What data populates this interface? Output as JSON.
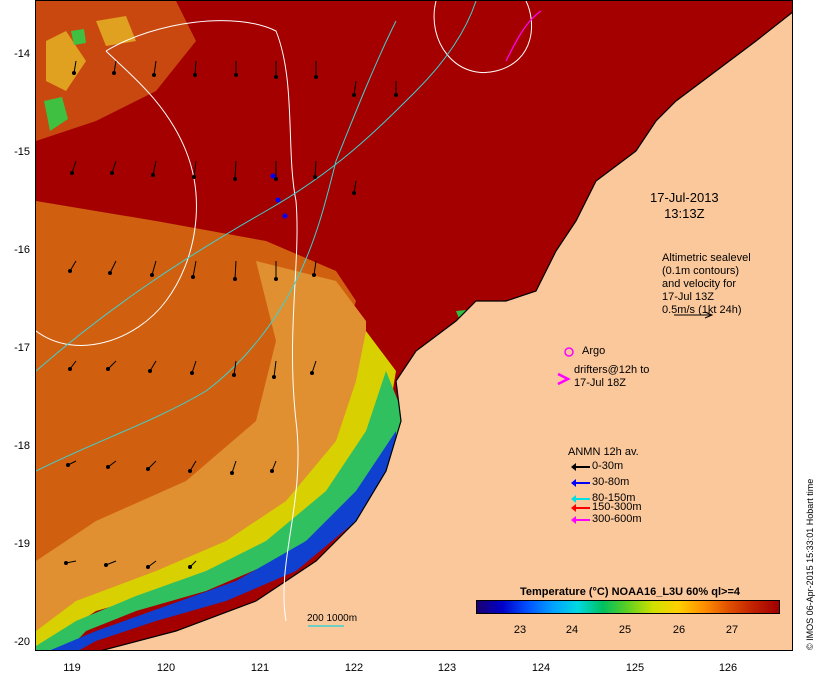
{
  "map": {
    "lat_ticks": [
      "-14",
      "-15",
      "-16",
      "-17",
      "-18",
      "-19",
      "-20"
    ],
    "lon_ticks": [
      "119",
      "120",
      "121",
      "122",
      "123",
      "124",
      "125",
      "126"
    ],
    "colors": {
      "warm": "#a40000",
      "land": "#fbc89c",
      "ocean_mid": "#d06010",
      "cool": "#e09030"
    }
  },
  "timestamp": {
    "line1": "17-Jul-2013",
    "line2": "13:13Z"
  },
  "sealevel_note": {
    "line1": "Altimetric sealevel",
    "line2": "(0.1m contours)",
    "line3": "and velocity for",
    "line4": "17-Jul 13Z",
    "line5": "0.5m/s (1kt 24h)"
  },
  "argo": {
    "label": "Argo",
    "color": "#ff00ff"
  },
  "drifters": {
    "line1": "drifters@12h to",
    "line2": "17-Jul 18Z",
    "color": "#ff00ff"
  },
  "anmn": {
    "title": "ANMN 12h av.",
    "items": [
      {
        "label": "0-30m",
        "color": "#000000"
      },
      {
        "label": "30-80m",
        "color": "#0000ff"
      },
      {
        "label": "80-150m",
        "color": "#00e0e0"
      },
      {
        "label": "150-300m",
        "color": "#ff0000"
      },
      {
        "label": "300-600m",
        "color": "#ff00ff"
      }
    ]
  },
  "depth_contours": {
    "label": "200  1000m",
    "color": "#40d0d0"
  },
  "colorbar": {
    "title": "Temperature (°C) NOAA16_L3U 60% ql>=4",
    "ticks": [
      "23",
      "24",
      "25",
      "26",
      "27"
    ]
  },
  "credit": "© IMOS 06-Apr-2015 15:33:01 Hobart time"
}
